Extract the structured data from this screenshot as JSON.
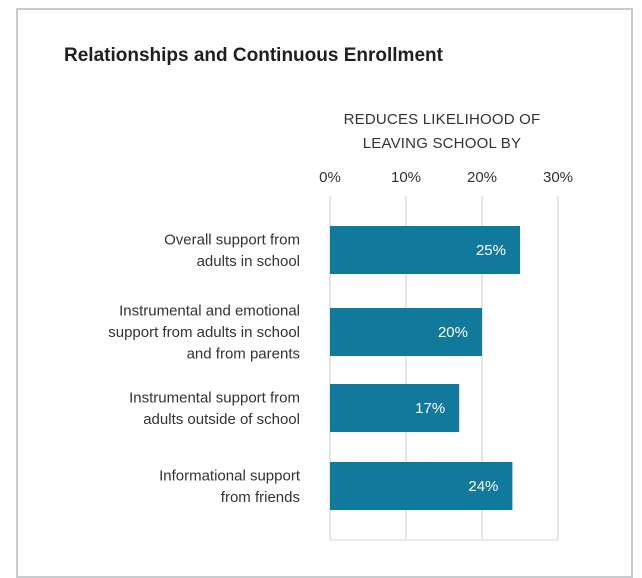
{
  "chart_data": {
    "type": "bar",
    "orientation": "horizontal",
    "title": "Relationships and Continuous Enrollment",
    "axis_title_lines": [
      "REDUCES LIKELIHOOD OF",
      "LEAVING SCHOOL BY"
    ],
    "xlim": [
      0,
      30
    ],
    "x_ticks": [
      0,
      10,
      20,
      30
    ],
    "x_tick_labels": [
      "0%",
      "10%",
      "20%",
      "30%"
    ],
    "grid": true,
    "categories": [
      [
        "Overall support from",
        "adults in school"
      ],
      [
        "Instrumental and emotional",
        "support from adults in school",
        "and from parents"
      ],
      [
        "Instrumental support from",
        "adults outside of school"
      ],
      [
        "Informational support",
        "from friends"
      ]
    ],
    "values": [
      25,
      20,
      17,
      24
    ],
    "data_labels": [
      "25%",
      "20%",
      "17%",
      "24%"
    ],
    "bar_color": "#11799b",
    "grid_color": "#e3e5e6"
  }
}
